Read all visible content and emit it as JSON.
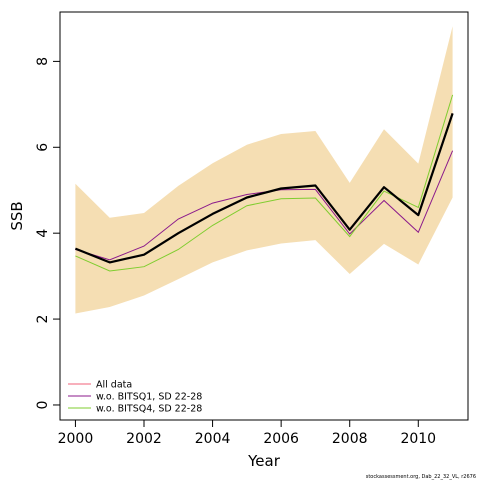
{
  "chart_data": {
    "type": "line",
    "title": "",
    "xlabel": "Year",
    "ylabel": "SSB",
    "xlim": [
      1999.55,
      2011.45
    ],
    "ylim": [
      -0.35,
      9.15
    ],
    "x_ticks": [
      2000,
      2002,
      2004,
      2006,
      2008,
      2010
    ],
    "y_ticks": [
      0,
      2,
      4,
      6,
      8
    ],
    "grid": false,
    "legend_position": "bottom-left",
    "x": [
      2000,
      2001,
      2002,
      2003,
      2004,
      2005,
      2006,
      2007,
      2008,
      2009,
      2010,
      2011
    ],
    "band": {
      "color": "#f5deb3",
      "lower": [
        2.13,
        2.28,
        2.55,
        2.93,
        3.32,
        3.6,
        3.76,
        3.84,
        3.05,
        3.75,
        3.27,
        4.83
      ],
      "upper": [
        5.15,
        4.36,
        4.47,
        5.1,
        5.63,
        6.06,
        6.31,
        6.38,
        5.17,
        6.42,
        5.62,
        8.82
      ]
    },
    "main_line": {
      "color": "#000000",
      "values": [
        3.64,
        3.32,
        3.5,
        4.0,
        4.45,
        4.83,
        5.04,
        5.11,
        4.08,
        5.07,
        4.42,
        6.79
      ]
    },
    "series": [
      {
        "name": "All data",
        "color": "#f0607a",
        "values": [
          3.64,
          3.32,
          3.5,
          4.0,
          4.45,
          4.83,
          5.04,
          5.11,
          4.08,
          5.07,
          4.42,
          6.79
        ]
      },
      {
        "name": "w.o. BITSQ1, SD 22-28",
        "color": "#8b1a8b",
        "values": [
          3.62,
          3.38,
          3.7,
          4.33,
          4.7,
          4.9,
          5.01,
          5.02,
          3.98,
          4.76,
          4.02,
          5.92
        ]
      },
      {
        "name": "w.o. BITSQ4, SD 22-28",
        "color": "#7fcd2f",
        "values": [
          3.47,
          3.12,
          3.22,
          3.62,
          4.18,
          4.64,
          4.8,
          4.82,
          3.92,
          4.98,
          4.6,
          7.22
        ]
      }
    ]
  },
  "footnote": "stockassessment.org, Dab_22_32_VL, r2676"
}
